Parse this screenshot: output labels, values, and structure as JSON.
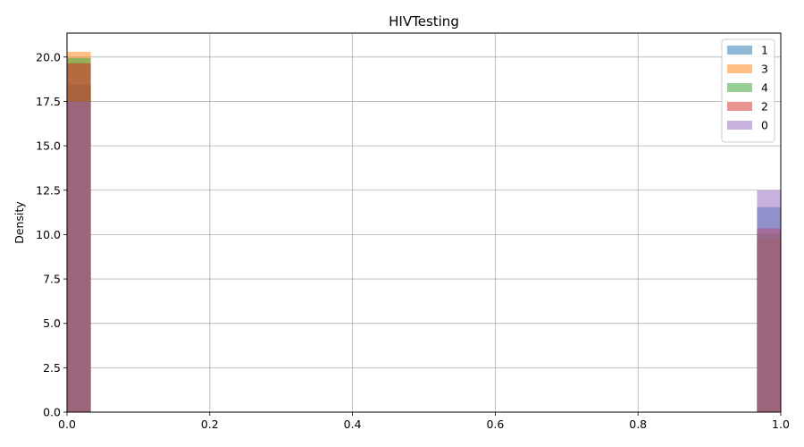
{
  "chart_data": {
    "type": "histogram",
    "title": "HIVTesting",
    "xlabel": "",
    "ylabel": "Density",
    "xlim": [
      0,
      1
    ],
    "ylim": [
      0,
      21.35
    ],
    "grid": true,
    "legend_position": "top-right",
    "bin_width": 0.0333,
    "x_ticks": [
      "0.0",
      "0.2",
      "0.4",
      "0.6",
      "0.8",
      "1.0"
    ],
    "y_ticks": [
      "0.0",
      "2.5",
      "5.0",
      "7.5",
      "10.0",
      "12.5",
      "15.0",
      "17.5",
      "20.0"
    ],
    "series": [
      {
        "name": "1",
        "color": "#1f77b4",
        "bins": [
          {
            "x0": 0.0,
            "x1": 0.0333,
            "density": 18.45
          },
          {
            "x0": 0.9667,
            "x1": 1.0,
            "density": 11.55
          }
        ]
      },
      {
        "name": "3",
        "color": "#ff7f0e",
        "bins": [
          {
            "x0": 0.0,
            "x1": 0.0333,
            "density": 20.3
          },
          {
            "x0": 0.9667,
            "x1": 1.0,
            "density": 9.7
          }
        ]
      },
      {
        "name": "4",
        "color": "#2ca02c",
        "bins": [
          {
            "x0": 0.0,
            "x1": 0.0333,
            "density": 19.95
          },
          {
            "x0": 0.9667,
            "x1": 1.0,
            "density": 10.05
          }
        ]
      },
      {
        "name": "2",
        "color": "#d62728",
        "bins": [
          {
            "x0": 0.0,
            "x1": 0.0333,
            "density": 19.65
          },
          {
            "x0": 0.9667,
            "x1": 1.0,
            "density": 10.35
          }
        ]
      },
      {
        "name": "0",
        "color": "#9467bd",
        "bins": [
          {
            "x0": 0.0,
            "x1": 0.0333,
            "density": 17.5
          },
          {
            "x0": 0.9667,
            "x1": 1.0,
            "density": 12.5
          }
        ]
      }
    ]
  }
}
